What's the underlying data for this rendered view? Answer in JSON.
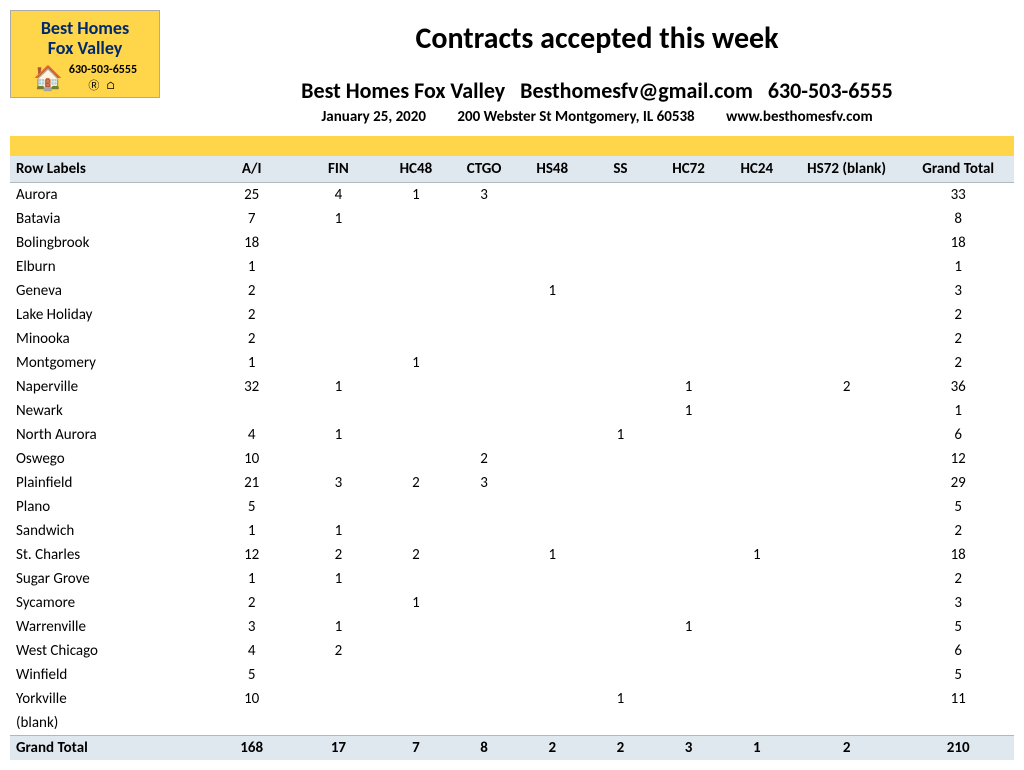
{
  "logo": {
    "line1": "Best Homes",
    "line2": "Fox Valley",
    "phone": "630-503-6555",
    "house_glyph": "🏠",
    "realtor_glyphs": "Ⓡ ⌂"
  },
  "header": {
    "title": "Contracts accepted this week",
    "company": "Best Homes Fox Valley",
    "email": "Besthomesfv@gmail.com",
    "phone": "630-503-6555",
    "date": "January 25, 2020",
    "address": "200 Webster St Montgomery, IL 60538",
    "website": "www.besthomesfv.com"
  },
  "table": {
    "columns": [
      "Row Labels",
      "A/I",
      "FIN",
      "HC48",
      "CTGO",
      "HS48",
      "SS",
      "HC72",
      "HC24",
      "HS72 (blank)",
      "Grand Total"
    ],
    "rows": [
      {
        "label": "Aurora",
        "cells": [
          "25",
          "4",
          "1",
          "3",
          "",
          "",
          "",
          "",
          "",
          "33"
        ]
      },
      {
        "label": "Batavia",
        "cells": [
          "7",
          "1",
          "",
          "",
          "",
          "",
          "",
          "",
          "",
          "8"
        ]
      },
      {
        "label": "Bolingbrook",
        "cells": [
          "18",
          "",
          "",
          "",
          "",
          "",
          "",
          "",
          "",
          "18"
        ]
      },
      {
        "label": "Elburn",
        "cells": [
          "1",
          "",
          "",
          "",
          "",
          "",
          "",
          "",
          "",
          "1"
        ]
      },
      {
        "label": "Geneva",
        "cells": [
          "2",
          "",
          "",
          "",
          "1",
          "",
          "",
          "",
          "",
          "3"
        ]
      },
      {
        "label": "Lake Holiday",
        "cells": [
          "2",
          "",
          "",
          "",
          "",
          "",
          "",
          "",
          "",
          "2"
        ]
      },
      {
        "label": "Minooka",
        "cells": [
          "2",
          "",
          "",
          "",
          "",
          "",
          "",
          "",
          "",
          "2"
        ]
      },
      {
        "label": "Montgomery",
        "cells": [
          "1",
          "",
          "1",
          "",
          "",
          "",
          "",
          "",
          "",
          "2"
        ]
      },
      {
        "label": "Naperville",
        "cells": [
          "32",
          "1",
          "",
          "",
          "",
          "",
          "1",
          "",
          "2",
          "36"
        ]
      },
      {
        "label": "Newark",
        "cells": [
          "",
          "",
          "",
          "",
          "",
          "",
          "1",
          "",
          "",
          "1"
        ]
      },
      {
        "label": "North Aurora",
        "cells": [
          "4",
          "1",
          "",
          "",
          "",
          "1",
          "",
          "",
          "",
          "6"
        ]
      },
      {
        "label": "Oswego",
        "cells": [
          "10",
          "",
          "",
          "2",
          "",
          "",
          "",
          "",
          "",
          "12"
        ]
      },
      {
        "label": "Plainfield",
        "cells": [
          "21",
          "3",
          "2",
          "3",
          "",
          "",
          "",
          "",
          "",
          "29"
        ]
      },
      {
        "label": "Plano",
        "cells": [
          "5",
          "",
          "",
          "",
          "",
          "",
          "",
          "",
          "",
          "5"
        ]
      },
      {
        "label": "Sandwich",
        "cells": [
          "1",
          "1",
          "",
          "",
          "",
          "",
          "",
          "",
          "",
          "2"
        ]
      },
      {
        "label": "St. Charles",
        "cells": [
          "12",
          "2",
          "2",
          "",
          "1",
          "",
          "",
          "1",
          "",
          "18"
        ]
      },
      {
        "label": "Sugar Grove",
        "cells": [
          "1",
          "1",
          "",
          "",
          "",
          "",
          "",
          "",
          "",
          "2"
        ]
      },
      {
        "label": "Sycamore",
        "cells": [
          "2",
          "",
          "1",
          "",
          "",
          "",
          "",
          "",
          "",
          "3"
        ]
      },
      {
        "label": "Warrenville",
        "cells": [
          "3",
          "1",
          "",
          "",
          "",
          "",
          "1",
          "",
          "",
          "5"
        ]
      },
      {
        "label": "West Chicago",
        "cells": [
          "4",
          "2",
          "",
          "",
          "",
          "",
          "",
          "",
          "",
          "6"
        ]
      },
      {
        "label": "Winfield",
        "cells": [
          "5",
          "",
          "",
          "",
          "",
          "",
          "",
          "",
          "",
          "5"
        ]
      },
      {
        "label": "Yorkville",
        "cells": [
          "10",
          "",
          "",
          "",
          "",
          "1",
          "",
          "",
          "",
          "11"
        ]
      },
      {
        "label": "(blank)",
        "cells": [
          "",
          "",
          "",
          "",
          "",
          "",
          "",
          "",
          "",
          ""
        ]
      }
    ],
    "total": {
      "label": "Grand Total",
      "cells": [
        "168",
        "17",
        "7",
        "8",
        "2",
        "2",
        "3",
        "1",
        "2",
        "210"
      ]
    }
  },
  "colors": {
    "accent_yellow": "#ffd54a",
    "header_blue": "#002a6e",
    "table_header_bg": "#dfe7ef"
  }
}
